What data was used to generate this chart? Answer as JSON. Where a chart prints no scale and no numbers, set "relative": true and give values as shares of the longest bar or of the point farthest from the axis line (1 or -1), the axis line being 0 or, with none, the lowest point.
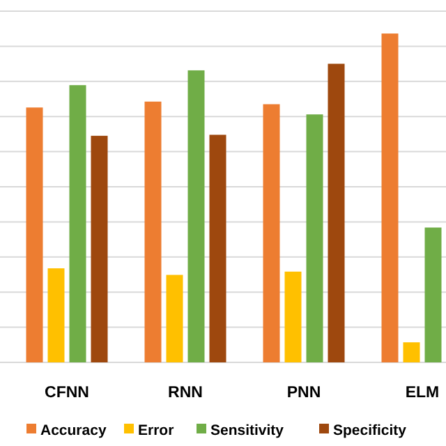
{
  "chart_data": {
    "type": "bar",
    "relative": true,
    "categories": [
      "CFNN",
      "RNN",
      "PNN",
      "ELM"
    ],
    "series": [
      {
        "name": "Accuracy",
        "color": "#ed7d31",
        "values": [
          0.775,
          0.793,
          0.785,
          1
        ]
      },
      {
        "name": "Error",
        "color": "#ffc000",
        "values": [
          0.286,
          0.266,
          0.276,
          0.061
        ]
      },
      {
        "name": "Sensitivity",
        "color": "#70ad47",
        "values": [
          0.843,
          0.888,
          0.754,
          0.41
        ]
      },
      {
        "name": "Specificity",
        "color": "#9e480e",
        "values": [
          0.689,
          0.692,
          0.908,
          null
        ]
      }
    ],
    "grid": "y",
    "legend": "bottom"
  }
}
